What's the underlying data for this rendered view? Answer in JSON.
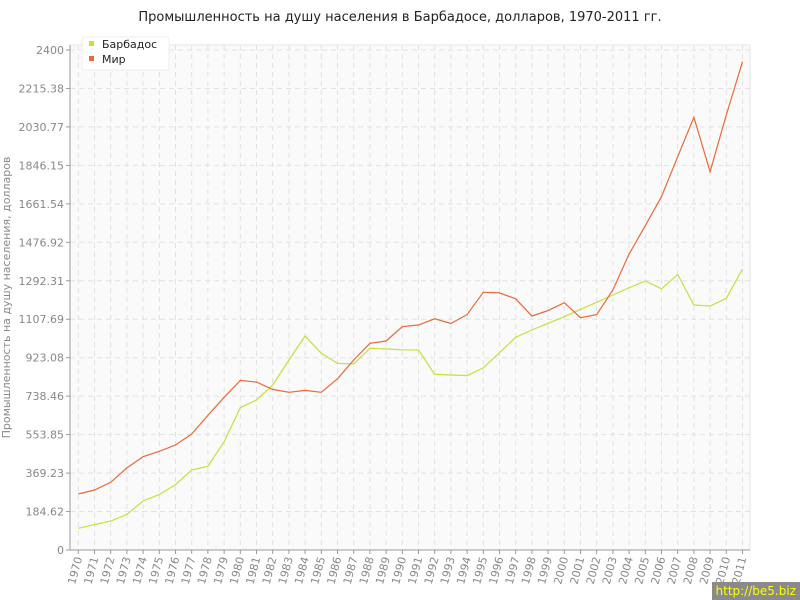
{
  "chart_data": {
    "type": "line",
    "title": "Промышленность на душу населения в Барбадосе, долларов, 1970-2011 гг.",
    "xlabel": "",
    "ylabel": "Промышленность на душу населения, долларов",
    "ylim": [
      0,
      2400
    ],
    "yticks": [
      "0",
      "184.62",
      "369.23",
      "553.85",
      "738.46",
      "923.08",
      "1107.69",
      "1292.31",
      "1476.92",
      "1661.54",
      "1846.15",
      "2030.77",
      "2215.38",
      "2400"
    ],
    "grid": true,
    "legend_position": "top-left",
    "x": [
      1970,
      1971,
      1972,
      1973,
      1974,
      1975,
      1976,
      1977,
      1978,
      1979,
      1980,
      1981,
      1982,
      1983,
      1984,
      1985,
      1986,
      1987,
      1988,
      1989,
      1990,
      1991,
      1992,
      1993,
      1994,
      1995,
      1996,
      1997,
      1998,
      1999,
      2000,
      2001,
      2002,
      2003,
      2004,
      2005,
      2006,
      2007,
      2008,
      2009,
      2010,
      2011
    ],
    "series": [
      {
        "name": "Барбадос",
        "color": "#c5e03c",
        "values": [
          104,
          122,
          139,
          171,
          235,
          266,
          314,
          384,
          402,
          520,
          683,
          720,
          792,
          912,
          1027,
          944,
          896,
          893,
          968,
          965,
          961,
          960,
          843,
          840,
          837,
          874,
          947,
          1021,
          1056,
          1088,
          1120,
          1155,
          1189,
          1224,
          1259,
          1291,
          1254,
          1323,
          1176,
          1171,
          1208,
          1349
        ]
      },
      {
        "name": "Мир",
        "color": "#e8693a",
        "values": [
          269,
          288,
          325,
          394,
          448,
          474,
          504,
          557,
          646,
          733,
          814,
          806,
          771,
          757,
          766,
          757,
          822,
          912,
          992,
          1003,
          1072,
          1080,
          1110,
          1087,
          1130,
          1237,
          1234,
          1206,
          1123,
          1149,
          1187,
          1115,
          1130,
          1248,
          1421,
          1557,
          1696,
          1888,
          2077,
          1816,
          2088,
          2344
        ]
      }
    ]
  },
  "watermark": "http://be5.biz"
}
